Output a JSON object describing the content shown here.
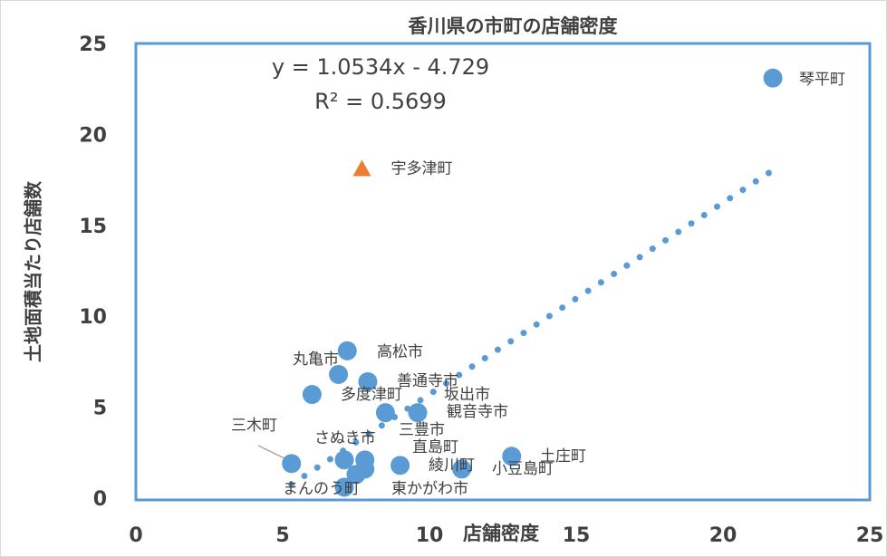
{
  "chart_data": {
    "type": "scatter",
    "title": "香川県の市町の店舗密度",
    "x_label": "店舗密度",
    "y_label": "土地面積当たり店舗数",
    "xlim": [
      0,
      25
    ],
    "xticks": [
      0,
      5,
      10,
      15,
      20,
      25
    ],
    "ylim": [
      0,
      25
    ],
    "yticks": [
      0,
      5,
      10,
      15,
      20,
      25
    ],
    "series": [
      {
        "marker": "circle",
        "color": "#5b9bd5",
        "x": [
          21.7,
          7.2,
          6.9,
          7.9,
          6.0,
          8.5,
          9.6,
          5.3,
          7.1,
          7.8,
          7.8,
          9.0,
          11.1,
          12.8,
          7.5,
          7.1
        ],
        "y": [
          23.2,
          8.2,
          6.9,
          6.5,
          5.8,
          4.8,
          4.8,
          2.0,
          2.2,
          2.2,
          1.7,
          1.9,
          1.7,
          2.4,
          1.4,
          0.7
        ],
        "labels": [
          "琴平町",
          "高松市",
          "丸亀市",
          "善通寺市",
          "坂出市",
          "多度津町",
          "観音寺市",
          "三木町",
          "さぬき市",
          "三豊市",
          "直島町",
          "東かがわ市",
          "綾川町",
          "土庄町",
          "小豆島町",
          "まんのう町"
        ]
      },
      {
        "marker": "triangle",
        "color": "#ed7d31",
        "x": [
          7.7
        ],
        "y": [
          18.2
        ],
        "labels": [
          "宇多津町"
        ]
      }
    ],
    "trendline": {
      "slope": 1.0534,
      "intercept": -4.729,
      "label": "y = 1.0534x - 4.729",
      "r2_label": "R² = 0.5699",
      "color": "#5b9bd5"
    }
  }
}
